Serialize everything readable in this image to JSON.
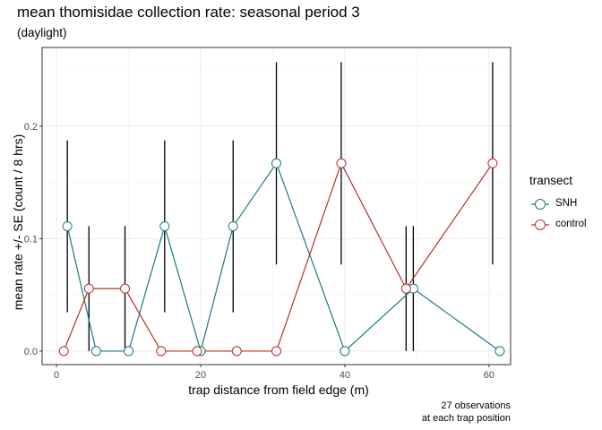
{
  "chart_data": {
    "type": "line",
    "title": "mean thomisidae collection rate: seasonal period 3",
    "subtitle": "(daylight)",
    "xlabel": "trap distance from field edge (m)",
    "ylabel": "mean rate +/- SE (count / 8 hrs)",
    "caption": [
      "27 observations",
      "at each trap position"
    ],
    "xlim": [
      -2,
      63
    ],
    "ylim": [
      -0.012,
      0.27
    ],
    "x_ticks": [
      0,
      20,
      40,
      60
    ],
    "y_ticks": [
      0.0,
      0.1,
      0.2
    ],
    "y_tick_labels": [
      "0.0",
      "0.1",
      "0.2"
    ],
    "grid": true,
    "legend": {
      "title": "transect",
      "position": "right"
    },
    "series": [
      {
        "name": "SNH",
        "color": "#1a7a82",
        "x": [
          1.5,
          5.5,
          10,
          15,
          20,
          24.5,
          30.5,
          40,
          49.5,
          61.5
        ],
        "y": [
          0.111,
          0.0,
          0.0,
          0.111,
          0.0,
          0.111,
          0.167,
          0.0,
          0.0556,
          0.0
        ],
        "se": [
          0.0765,
          0,
          0,
          0.0765,
          0,
          0.0765,
          0.09,
          0,
          0.0556,
          0
        ]
      },
      {
        "name": "control",
        "color": "#b5302a",
        "x": [
          1,
          4.5,
          9.5,
          14.5,
          19.5,
          25,
          30.5,
          39.5,
          48.5,
          60.5
        ],
        "y": [
          0.0,
          0.0556,
          0.0556,
          0.0,
          0.0,
          0.0,
          0.0,
          0.167,
          0.0556,
          0.167
        ],
        "se": [
          0,
          0.0556,
          0.0556,
          0,
          0,
          0,
          0,
          0.09,
          0.0556,
          0.09
        ]
      }
    ]
  }
}
